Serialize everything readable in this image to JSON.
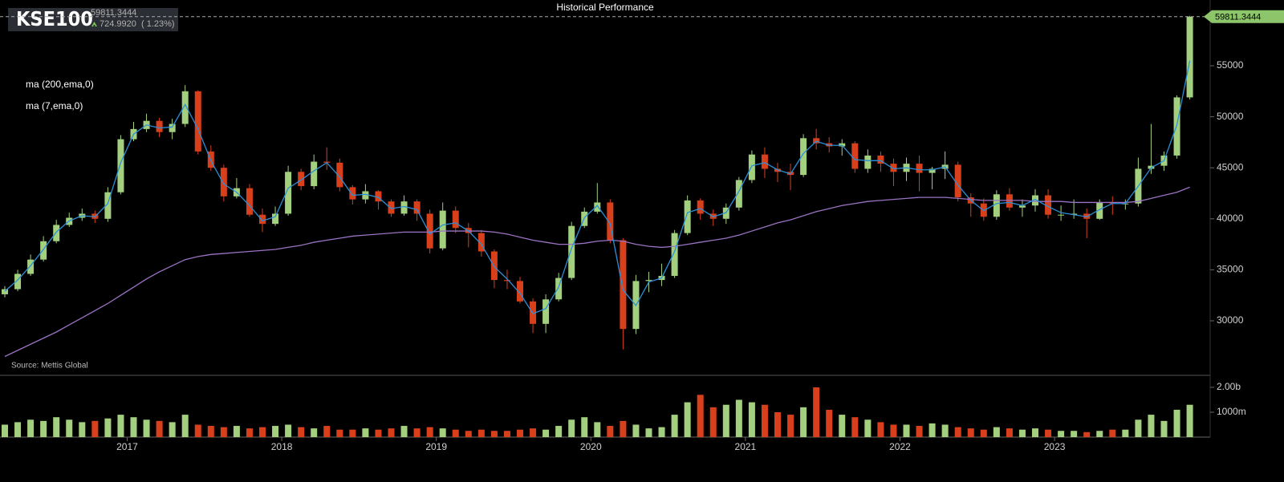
{
  "header": {
    "symbol": "KSE100",
    "price": "59811.3444",
    "change": "724.9920",
    "change_pct": "( 1.23%)"
  },
  "chart_data": {
    "type": "candlestick",
    "title": "Historical Performance",
    "source": "Source: Mettis Global",
    "up_color": "#a3d07f",
    "down_color": "#d8401c",
    "categories": [
      null,
      null,
      null,
      null,
      null,
      null,
      null,
      null,
      null,
      null,
      "2017",
      null,
      null,
      null,
      null,
      null,
      null,
      null,
      null,
      null,
      null,
      null,
      "2018",
      null,
      null,
      null,
      null,
      null,
      null,
      null,
      null,
      null,
      null,
      null,
      "2019",
      null,
      null,
      null,
      null,
      null,
      null,
      null,
      null,
      null,
      null,
      null,
      "2020",
      null,
      null,
      null,
      null,
      null,
      null,
      null,
      null,
      null,
      null,
      null,
      "2021",
      null,
      null,
      null,
      null,
      null,
      null,
      null,
      null,
      null,
      null,
      null,
      "2022",
      null,
      null,
      null,
      null,
      null,
      null,
      null,
      null,
      null,
      null,
      null,
      "2023",
      null,
      null,
      null,
      null,
      null,
      null,
      null,
      null,
      null,
      null
    ],
    "open": [
      32600,
      33100,
      34600,
      36000,
      37800,
      39400,
      40100,
      40500,
      40000,
      42600,
      47800,
      48800,
      49600,
      48500,
      49300,
      52500,
      46600,
      45000,
      42200,
      43000,
      40400,
      39500,
      40500,
      44600,
      43200,
      45600,
      45500,
      43100,
      41900,
      42700,
      41700,
      40500,
      41700,
      40500,
      37100,
      40800,
      39100,
      38600,
      36800,
      34000,
      33900,
      31900,
      29700,
      32100,
      34200,
      39300,
      40700,
      41600,
      37900,
      29200,
      33900,
      34000,
      34400,
      38600,
      41800,
      40500,
      40000,
      41100,
      43800,
      46300,
      44900,
      44600,
      44300,
      47900,
      47400,
      47100,
      47400,
      44900,
      46200,
      45400,
      44600,
      45400,
      44500,
      44900,
      45300,
      42100,
      41500,
      40200,
      42400,
      41100,
      41300,
      42300,
      40400,
      40400,
      40500,
      40000,
      41600,
      41500,
      41500,
      44900,
      45200,
      46200,
      51900
    ],
    "high": [
      33400,
      35000,
      36500,
      38300,
      39900,
      40600,
      41000,
      40800,
      43100,
      48200,
      49500,
      50300,
      49900,
      49800,
      53100,
      52600,
      47200,
      45300,
      44000,
      43400,
      41000,
      41200,
      45200,
      44900,
      46300,
      47000,
      45900,
      43300,
      43400,
      42800,
      41900,
      42300,
      41900,
      40900,
      41600,
      41200,
      39600,
      38900,
      37000,
      35000,
      34300,
      32200,
      32600,
      34700,
      39700,
      41100,
      43500,
      41900,
      38100,
      34500,
      34800,
      35600,
      38900,
      42300,
      42000,
      40900,
      41500,
      44100,
      46700,
      47000,
      45500,
      45400,
      48300,
      48800,
      48000,
      47800,
      47600,
      46800,
      46600,
      45900,
      46000,
      46200,
      45100,
      46600,
      45600,
      42500,
      42000,
      42800,
      43000,
      41900,
      42900,
      42900,
      41300,
      41900,
      41000,
      41900,
      42200,
      41900,
      46000,
      49300,
      46600,
      52100,
      59900
    ],
    "low": [
      32300,
      32900,
      34400,
      35800,
      37600,
      39200,
      39800,
      39600,
      39700,
      42400,
      47600,
      48500,
      48000,
      47800,
      49000,
      46300,
      44700,
      41700,
      42000,
      40200,
      38700,
      39300,
      40300,
      42800,
      42900,
      44800,
      42700,
      41400,
      41500,
      40900,
      40200,
      40300,
      39800,
      36600,
      36900,
      38600,
      37200,
      36300,
      33200,
      33100,
      31700,
      28800,
      28800,
      31900,
      34000,
      39100,
      40500,
      37600,
      27200,
      28700,
      32800,
      33400,
      34200,
      38400,
      39900,
      39300,
      39500,
      40800,
      43500,
      44000,
      43600,
      42800,
      44100,
      46800,
      46500,
      46200,
      44500,
      44500,
      44600,
      43200,
      43700,
      42700,
      42900,
      43900,
      41700,
      40200,
      39800,
      39900,
      40800,
      40200,
      40700,
      40000,
      39800,
      40000,
      38100,
      39900,
      40400,
      40900,
      41200,
      44400,
      44700,
      45900,
      51700
    ],
    "close": [
      33100,
      34600,
      36000,
      37800,
      39400,
      40100,
      40500,
      40000,
      42600,
      47800,
      48800,
      49600,
      48500,
      49300,
      52500,
      46600,
      45000,
      42200,
      43000,
      40400,
      39500,
      40500,
      44600,
      43200,
      45600,
      45500,
      43100,
      41900,
      42700,
      41700,
      40500,
      41700,
      40500,
      37100,
      40800,
      39100,
      38600,
      36800,
      34000,
      33900,
      31900,
      29700,
      32100,
      34200,
      39300,
      40700,
      41600,
      37900,
      29200,
      33900,
      34000,
      34400,
      38600,
      41800,
      40500,
      40000,
      41100,
      43800,
      46300,
      44900,
      44600,
      44300,
      47900,
      47400,
      47100,
      47400,
      44900,
      46200,
      45400,
      44600,
      45400,
      44500,
      44900,
      45300,
      42100,
      41500,
      40200,
      42400,
      41100,
      41300,
      42300,
      40400,
      40400,
      40500,
      40000,
      41600,
      41500,
      41500,
      44900,
      45200,
      46200,
      51900,
      59811.3444
    ],
    "ylim": [
      24654,
      61447
    ],
    "yticks": [
      30000,
      35000,
      40000,
      45000,
      50000,
      55000
    ],
    "lines": [
      {
        "name": "ma (200,ema,0)",
        "color": "#9b72c4",
        "values": [
          26500,
          27100,
          27700,
          28300,
          28900,
          29600,
          30300,
          31000,
          31700,
          32500,
          33300,
          34100,
          34800,
          35400,
          36000,
          36300,
          36500,
          36600,
          36700,
          36800,
          36900,
          37000,
          37200,
          37400,
          37700,
          37900,
          38100,
          38300,
          38400,
          38500,
          38600,
          38700,
          38700,
          38700,
          38800,
          38800,
          38800,
          38800,
          38700,
          38500,
          38200,
          37900,
          37700,
          37500,
          37500,
          37600,
          37800,
          37900,
          37800,
          37500,
          37300,
          37200,
          37300,
          37500,
          37700,
          37900,
          38100,
          38400,
          38800,
          39200,
          39600,
          39900,
          40300,
          40700,
          41000,
          41300,
          41500,
          41700,
          41800,
          41900,
          42000,
          42100,
          42100,
          42100,
          42000,
          41900,
          41800,
          41800,
          41800,
          41800,
          41700,
          41700,
          41700,
          41600,
          41600,
          41600,
          41600,
          41600,
          41700,
          42000,
          42300,
          42600,
          43100
        ]
      },
      {
        "name": "ma (7,ema,0)",
        "color": "#2b8fd8",
        "values": [
          32900,
          34000,
          35400,
          37000,
          38700,
          39800,
          40300,
          40200,
          41500,
          45500,
          48300,
          49200,
          48900,
          49000,
          51200,
          48800,
          45700,
          43400,
          42600,
          41300,
          39800,
          40200,
          43000,
          43800,
          44700,
          45500,
          44100,
          42300,
          42400,
          42100,
          41000,
          41200,
          40900,
          38500,
          39400,
          39600,
          38800,
          37500,
          35300,
          34100,
          32700,
          30700,
          31200,
          33300,
          37100,
          40100,
          41300,
          39500,
          33000,
          31500,
          33800,
          34200,
          36800,
          40600,
          41000,
          40200,
          40600,
          42700,
          45200,
          45500,
          44800,
          44400,
          46400,
          47600,
          47200,
          47200,
          45800,
          45700,
          45700,
          44900,
          45000,
          44800,
          44800,
          45100,
          43300,
          41800,
          40800,
          41500,
          41600,
          41300,
          41900,
          41200,
          40600,
          40400,
          40200,
          40900,
          41500,
          41500,
          43200,
          45000,
          45700,
          49200,
          55500
        ]
      }
    ],
    "volume": {
      "values": [
        500,
        600,
        700,
        650,
        800,
        700,
        600,
        650,
        750,
        900,
        800,
        700,
        650,
        600,
        900,
        500,
        450,
        400,
        450,
        350,
        400,
        450,
        500,
        400,
        350,
        450,
        300,
        300,
        350,
        300,
        350,
        450,
        350,
        400,
        350,
        300,
        250,
        300,
        250,
        250,
        300,
        350,
        300,
        450,
        700,
        800,
        600,
        450,
        650,
        500,
        350,
        400,
        900,
        1400,
        1700,
        1200,
        1300,
        1500,
        1400,
        1300,
        1000,
        900,
        1200,
        2000,
        1100,
        900,
        800,
        700,
        600,
        500,
        500,
        450,
        550,
        500,
        400,
        350,
        300,
        400,
        350,
        300,
        350,
        300,
        250,
        250,
        200,
        250,
        300,
        300,
        700,
        900,
        650,
        1100,
        1300
      ],
      "ylim": [
        0,
        2484
      ],
      "yticks": [
        {
          "value": 1000,
          "label": "1000m"
        },
        {
          "value": 2000,
          "label": "2.00b"
        }
      ]
    }
  }
}
